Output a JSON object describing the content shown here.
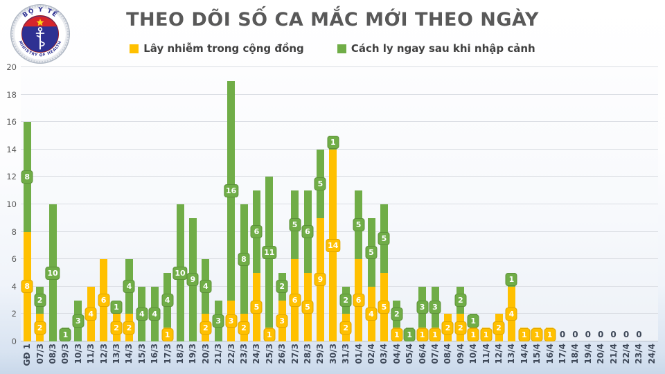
{
  "page": {
    "title": "THEO DÕI SỐ CA MẮC MỚI THEO NGÀY"
  },
  "logo": {
    "top_text": "BỘ Y TẾ",
    "bottom_text": "MINISTRY OF HEALTH",
    "colors": {
      "disc": "#2e3192",
      "band": "#d6252b",
      "star": "#fcd116",
      "ring_text": "#2e3192"
    }
  },
  "legend": {
    "items": [
      {
        "label": "Lây nhiễm trong cộng đồng",
        "color": "#FFC000"
      },
      {
        "label": "Cách ly ngay sau khi nhập cảnh",
        "color": "#70AD47"
      }
    ]
  },
  "chart_data": {
    "type": "bar",
    "stacked": true,
    "title": "THEO DÕI SỐ CA MẮC MỚI THEO NGÀY",
    "xlabel": "",
    "ylabel": "",
    "ylim": [
      0,
      20
    ],
    "ytick_step": 2,
    "grid": true,
    "legend_position": "top",
    "categories": [
      "GĐ 1",
      "07/3",
      "08/3",
      "09/3",
      "10/3",
      "11/3",
      "12/3",
      "13/3",
      "14/3",
      "15/3",
      "16/3",
      "17/3",
      "18/3",
      "19/3",
      "20/3",
      "21/3",
      "22/3",
      "23/3",
      "24/3",
      "25/3",
      "26/3",
      "27/3",
      "28/3",
      "29/3",
      "30/3",
      "31/3",
      "01/4",
      "02/4",
      "03/4",
      "04/4",
      "05/4",
      "06/4",
      "07/4",
      "08/4",
      "09/4",
      "10/4",
      "11/4",
      "12/4",
      "13/4",
      "14/4",
      "15/4",
      "16/4",
      "17/4",
      "18/4",
      "19/4",
      "20/4",
      "21/4",
      "22/4",
      "23/4",
      "24/4"
    ],
    "series": [
      {
        "name": "Lây nhiễm trong cộng đồng",
        "color": "#FFC000",
        "badge_border": "#dfa600",
        "values": [
          8,
          2,
          0,
          0,
          0,
          4,
          6,
          2,
          2,
          0,
          0,
          1,
          0,
          0,
          2,
          0,
          3,
          2,
          5,
          1,
          3,
          6,
          5,
          9,
          14,
          2,
          6,
          4,
          5,
          1,
          0,
          1,
          1,
          2,
          2,
          1,
          1,
          2,
          4,
          1,
          1,
          1,
          0,
          0,
          0,
          0,
          0,
          0,
          0,
          0
        ]
      },
      {
        "name": "Cách ly ngay sau khi nhập cảnh",
        "color": "#70AD47",
        "badge_border": "#5c9139",
        "values": [
          8,
          2,
          10,
          1,
          3,
          0,
          0,
          1,
          4,
          4,
          4,
          4,
          10,
          9,
          4,
          3,
          16,
          8,
          6,
          11,
          2,
          5,
          6,
          5,
          1,
          2,
          5,
          5,
          5,
          2,
          1,
          3,
          3,
          0,
          2,
          1,
          0,
          0,
          1,
          0,
          0,
          0,
          0,
          0,
          0,
          0,
          0,
          0,
          0,
          0
        ]
      }
    ],
    "data_labels": "white text on segment-colored rounded badges at segment midpoints",
    "zero_label_text": "0",
    "zero_label_categories": [
      "17/4",
      "18/4",
      "19/4",
      "20/4",
      "21/4",
      "22/4",
      "23/4"
    ]
  }
}
